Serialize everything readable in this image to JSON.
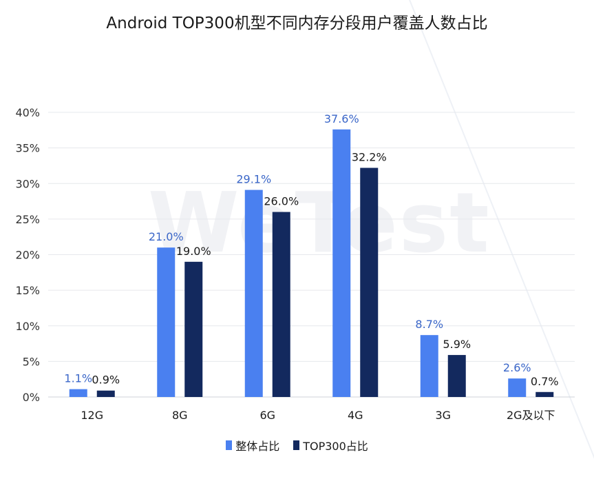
{
  "chart_data": {
    "type": "bar",
    "title": "Android TOP300机型不同内存分段用户覆盖人数占比",
    "watermark": "WeTest",
    "categories": [
      "12G",
      "8G",
      "6G",
      "4G",
      "3G",
      "2G及以下"
    ],
    "series": [
      {
        "name": "整体占比",
        "color": "#4a80f0",
        "values": [
          1.1,
          21.0,
          29.1,
          37.6,
          8.7,
          2.6
        ],
        "labels": [
          "1.1%",
          "21.0%",
          "29.1%",
          "37.6%",
          "8.7%",
          "2.6%"
        ]
      },
      {
        "name": "TOP300占比",
        "color": "#13295e",
        "values": [
          0.9,
          19.0,
          26.0,
          32.2,
          5.9,
          0.7
        ],
        "labels": [
          "0.9%",
          "19.0%",
          "26.0%",
          "32.2%",
          "5.9%",
          "0.7%"
        ]
      }
    ],
    "yticks": [
      "0%",
      "5%",
      "10%",
      "15%",
      "20%",
      "25%",
      "30%",
      "35%",
      "40%"
    ],
    "ylim": [
      0,
      40
    ],
    "grid": true,
    "legend_position": "bottom"
  }
}
